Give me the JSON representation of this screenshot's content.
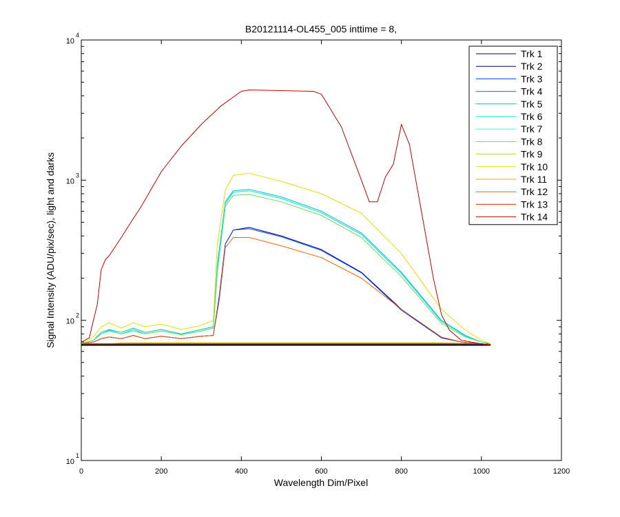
{
  "chart_data": {
    "type": "line",
    "title": "B20121114-OL455_005 inttime = 8,",
    "xlabel": "Wavelength Dim/Pixel",
    "ylabel": "Signal Intensity (ADU/pix/sec), light and darks",
    "xlim": [
      0,
      1200
    ],
    "ylim": [
      10,
      10000
    ],
    "yscale": "log",
    "xticks": [
      0,
      200,
      400,
      600,
      800,
      1000,
      1200
    ],
    "xtick_labels": [
      "0",
      "200",
      "400",
      "600",
      "800",
      "1000",
      "1200"
    ],
    "ytick_labels": [
      {
        "base": "10",
        "exp": "1"
      },
      {
        "base": "10",
        "exp": "2"
      },
      {
        "base": "10",
        "exp": "3"
      },
      {
        "base": "10",
        "exp": "4"
      }
    ],
    "grid": false,
    "legend_position": "top-right",
    "series": [
      {
        "name": "Trk 1",
        "color": "#000080",
        "x": [
          1,
          30,
          50,
          70,
          100,
          150,
          200,
          250,
          300,
          320,
          335,
          345,
          360,
          380,
          420,
          500,
          600,
          700,
          800,
          900,
          950,
          1000,
          1023
        ],
        "y": [
          68,
          68,
          68,
          68,
          68,
          68,
          68,
          68,
          68,
          68,
          68,
          68,
          68,
          68,
          68,
          68,
          68,
          68,
          68,
          68,
          68,
          67,
          67
        ]
      },
      {
        "name": "Trk 2",
        "color": "#00007a",
        "x": [
          1,
          30,
          50,
          70,
          100,
          130,
          160,
          200,
          250,
          300,
          330,
          345,
          360,
          380,
          420,
          500,
          600,
          700,
          800,
          900,
          950,
          1000,
          1023
        ],
        "y": [
          68,
          70,
          74,
          76,
          74,
          78,
          74,
          77,
          74,
          77,
          78,
          150,
          350,
          440,
          460,
          400,
          320,
          220,
          120,
          75,
          70,
          68,
          67
        ]
      },
      {
        "name": "Trk 3",
        "color": "#0040ff",
        "x": [
          1,
          30,
          50,
          70,
          100,
          130,
          160,
          200,
          250,
          300,
          330,
          345,
          360,
          380,
          420,
          500,
          600,
          700,
          800,
          900,
          950,
          1000,
          1023
        ],
        "y": [
          68,
          70,
          74,
          76,
          74,
          78,
          74,
          77,
          74,
          77,
          78,
          150,
          350,
          440,
          450,
          395,
          315,
          218,
          118,
          75,
          70,
          68,
          67
        ]
      },
      {
        "name": "Trk 4",
        "color": "#0080c0",
        "x": [
          1,
          30,
          50,
          70,
          100,
          150,
          200,
          250,
          300,
          350,
          400,
          500,
          600,
          700,
          800,
          900,
          1000,
          1023
        ],
        "y": [
          68,
          68,
          68,
          68,
          68,
          68,
          68,
          68,
          68,
          68,
          68,
          68,
          68,
          68,
          68,
          68,
          68,
          67
        ]
      },
      {
        "name": "Trk 5",
        "color": "#00c0c0",
        "x": [
          1,
          30,
          50,
          70,
          100,
          130,
          160,
          200,
          250,
          300,
          330,
          340,
          360,
          380,
          420,
          500,
          600,
          700,
          800,
          900,
          960,
          1000,
          1023
        ],
        "y": [
          68,
          72,
          82,
          86,
          82,
          88,
          82,
          86,
          80,
          86,
          90,
          250,
          700,
          840,
          860,
          760,
          600,
          420,
          220,
          100,
          78,
          70,
          68
        ]
      },
      {
        "name": "Trk 6",
        "color": "#00e0e0",
        "x": [
          1,
          30,
          50,
          70,
          100,
          130,
          160,
          200,
          250,
          300,
          330,
          340,
          360,
          380,
          420,
          500,
          600,
          700,
          800,
          900,
          960,
          1000,
          1023
        ],
        "y": [
          68,
          72,
          80,
          85,
          80,
          86,
          80,
          84,
          79,
          84,
          88,
          240,
          680,
          820,
          840,
          740,
          585,
          410,
          215,
          98,
          77,
          70,
          68
        ]
      },
      {
        "name": "Trk 7",
        "color": "#40ffe0",
        "x": [
          1,
          30,
          50,
          70,
          100,
          150,
          200,
          250,
          300,
          350,
          400,
          500,
          600,
          700,
          800,
          900,
          1000,
          1023
        ],
        "y": [
          68,
          68,
          68,
          68,
          68,
          68,
          68,
          68,
          68,
          68,
          68,
          68,
          68,
          68,
          68,
          68,
          68,
          67
        ]
      },
      {
        "name": "Trk 8",
        "color": "#60e060",
        "x": [
          1,
          30,
          50,
          70,
          100,
          130,
          160,
          200,
          250,
          300,
          330,
          340,
          360,
          380,
          420,
          500,
          600,
          700,
          800,
          900,
          960,
          1000,
          1023
        ],
        "y": [
          68,
          72,
          80,
          84,
          80,
          84,
          80,
          84,
          79,
          84,
          88,
          220,
          650,
          780,
          790,
          700,
          560,
          390,
          205,
          95,
          76,
          70,
          68
        ]
      },
      {
        "name": "Trk 9",
        "color": "#a0e020",
        "x": [
          1,
          30,
          50,
          70,
          100,
          150,
          200,
          250,
          300,
          350,
          400,
          500,
          600,
          700,
          800,
          900,
          1000,
          1023
        ],
        "y": [
          68,
          68,
          68,
          68,
          68,
          69,
          69,
          69,
          69,
          69,
          69,
          69,
          69,
          69,
          69,
          69,
          68,
          67
        ]
      },
      {
        "name": "Trk 10",
        "color": "#e0e000",
        "x": [
          1,
          30,
          50,
          70,
          100,
          130,
          160,
          200,
          250,
          300,
          330,
          340,
          360,
          380,
          420,
          500,
          600,
          700,
          800,
          900,
          960,
          1000,
          1023
        ],
        "y": [
          68,
          76,
          90,
          96,
          88,
          96,
          90,
          94,
          86,
          92,
          100,
          350,
          850,
          1080,
          1120,
          980,
          800,
          580,
          300,
          120,
          85,
          72,
          68
        ]
      },
      {
        "name": "Trk 11",
        "color": "#f0a000",
        "x": [
          1,
          30,
          50,
          70,
          100,
          150,
          200,
          250,
          300,
          350,
          400,
          500,
          600,
          700,
          800,
          900,
          1000,
          1023
        ],
        "y": [
          68,
          68,
          68,
          68,
          69,
          69,
          69,
          69,
          69,
          69,
          69,
          69,
          69,
          69,
          69,
          69,
          68,
          67
        ]
      },
      {
        "name": "Trk 12",
        "color": "#f06000",
        "x": [
          1,
          30,
          50,
          70,
          100,
          130,
          160,
          200,
          250,
          300,
          330,
          345,
          360,
          380,
          420,
          500,
          600,
          700,
          800,
          900,
          950,
          1000,
          1023
        ],
        "y": [
          68,
          70,
          74,
          76,
          74,
          78,
          74,
          77,
          74,
          77,
          78,
          140,
          330,
          390,
          390,
          340,
          280,
          200,
          120,
          76,
          70,
          68,
          67
        ]
      },
      {
        "name": "Trk 13",
        "color": "#e02000",
        "x": [
          1,
          30,
          50,
          70,
          100,
          150,
          200,
          250,
          300,
          350,
          400,
          500,
          600,
          700,
          800,
          900,
          1000,
          1023
        ],
        "y": [
          68,
          68,
          68,
          68,
          68,
          68,
          68,
          68,
          68,
          68,
          68,
          68,
          68,
          68,
          68,
          68,
          68,
          67
        ]
      },
      {
        "name": "Trk 14",
        "color": "#c00000",
        "x": [
          1,
          20,
          40,
          50,
          60,
          70,
          80,
          100,
          120,
          150,
          200,
          250,
          300,
          350,
          400,
          420,
          500,
          580,
          600,
          650,
          700,
          720,
          740,
          760,
          780,
          800,
          820,
          850,
          880,
          900,
          920,
          950,
          1000,
          1023
        ],
        "y": [
          70,
          75,
          130,
          230,
          270,
          290,
          320,
          390,
          480,
          650,
          1150,
          1750,
          2500,
          3400,
          4300,
          4400,
          4350,
          4300,
          4100,
          2400,
          1000,
          700,
          700,
          1050,
          1300,
          2500,
          1800,
          600,
          200,
          110,
          85,
          72,
          68,
          67
        ]
      }
    ],
    "dark_level": {
      "color": "#000000",
      "x": [
        0,
        1023
      ],
      "y": [
        67,
        67
      ]
    }
  }
}
